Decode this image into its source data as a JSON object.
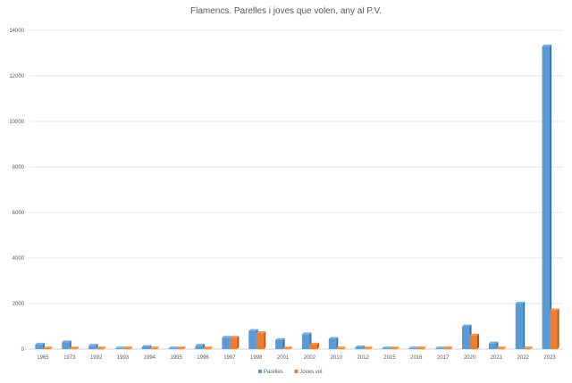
{
  "chart_data": {
    "type": "bar",
    "title": "Flamencs. Parelles i joves que volen, any al P.V.",
    "xlabel": "",
    "ylabel": "",
    "ylim": [
      0,
      14000
    ],
    "yticks": [
      0,
      2000,
      4000,
      6000,
      8000,
      10000,
      12000,
      14000
    ],
    "grid": true,
    "legend_position": "bottom",
    "categories": [
      "1965",
      "1973",
      "1992",
      "1993",
      "1994",
      "1995",
      "1996",
      "1997",
      "1998",
      "2001",
      "2002",
      "2010",
      "2012",
      "2015",
      "2016",
      "2017",
      "2020",
      "2021",
      "2022",
      "2023"
    ],
    "series": [
      {
        "name": "Parelles",
        "color": "#5B9BD5",
        "values": [
          200,
          300,
          150,
          20,
          100,
          20,
          150,
          500,
          800,
          400,
          650,
          450,
          80,
          20,
          20,
          20,
          1000,
          250,
          2000,
          13300
        ]
      },
      {
        "name": "Joves vol.",
        "color": "#ED7D31",
        "values": [
          20,
          30,
          10,
          5,
          20,
          10,
          30,
          500,
          700,
          20,
          200,
          20,
          20,
          10,
          10,
          10,
          600,
          20,
          20,
          1700
        ]
      }
    ]
  }
}
